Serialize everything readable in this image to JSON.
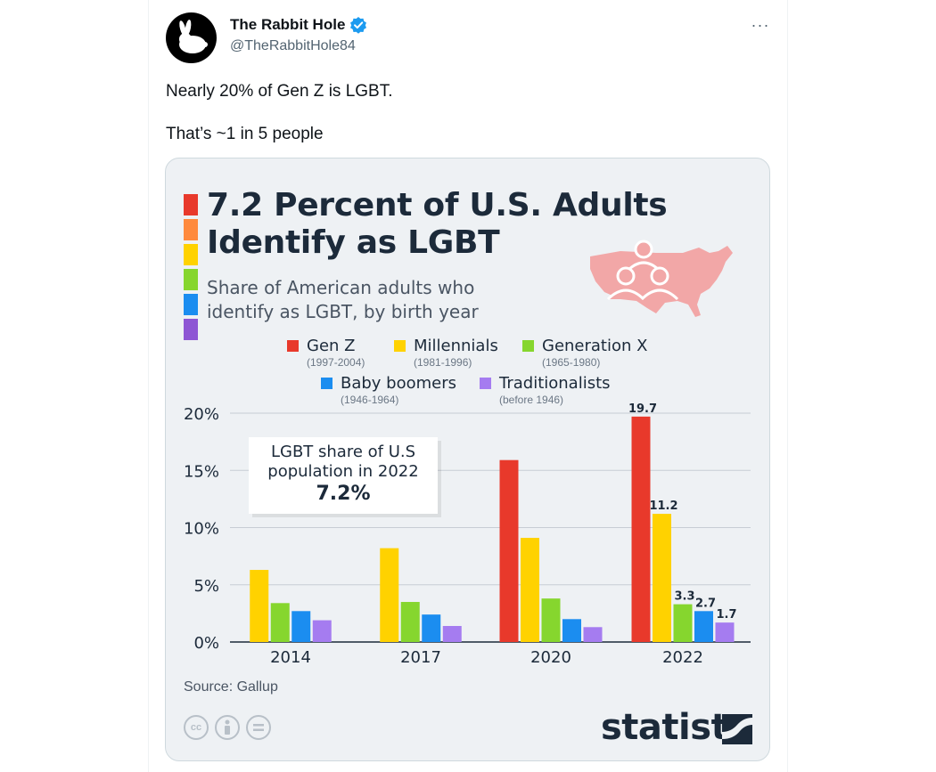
{
  "tweet": {
    "author_name": "The Rabbit Hole",
    "handle": "@TheRabbitHole84",
    "more_label": "···",
    "lines": [
      "Nearly 20% of Gen Z is LGBT.",
      "That’s ~1 in 5 people"
    ]
  },
  "infographic": {
    "title_line1": "7.2 Percent of U.S. Adults",
    "title_line2": "Identify as LGBT",
    "subtitle_line1": "Share of American adults who",
    "subtitle_line2": "identify as LGBT, by birth year",
    "callout_line1": "LGBT share of U.S",
    "callout_line2": "population in 2022",
    "callout_value": "7.2%",
    "source": "Source: Gallup",
    "brand": "statista",
    "cc_icons": [
      "cc-icon",
      "attribution-icon",
      "no-derivatives-icon"
    ]
  },
  "chart_data": {
    "type": "bar",
    "title": "7.2 Percent of U.S. Adults Identify as LGBT",
    "subtitle": "Share of American adults who identify as LGBT, by birth year",
    "categories": [
      "2014",
      "2017",
      "2020",
      "2022"
    ],
    "ylim": [
      0,
      20
    ],
    "yticks": [
      "0%",
      "5%",
      "10%",
      "15%",
      "20%"
    ],
    "grid": true,
    "series": [
      {
        "name": "Gen Z",
        "years": "(1997-2004)",
        "color": "#e8392b",
        "values": [
          null,
          null,
          15.9,
          19.7
        ],
        "labels": [
          null,
          null,
          null,
          "19.7"
        ]
      },
      {
        "name": "Millennials",
        "years": "(1981-1996)",
        "color": "#ffd200",
        "values": [
          6.3,
          8.2,
          9.1,
          11.2
        ],
        "labels": [
          null,
          null,
          null,
          "11.2"
        ]
      },
      {
        "name": "Generation X",
        "years": "(1965-1980)",
        "color": "#86d62e",
        "values": [
          3.4,
          3.5,
          3.8,
          3.3
        ],
        "labels": [
          null,
          null,
          null,
          "3.3"
        ]
      },
      {
        "name": "Baby boomers",
        "years": "(1946-1964)",
        "color": "#1b8df0",
        "values": [
          2.7,
          2.4,
          2.0,
          2.7
        ],
        "labels": [
          null,
          null,
          null,
          "2.7"
        ]
      },
      {
        "name": "Traditionalists",
        "years": "(before 1946)",
        "color": "#a57cf0",
        "values": [
          1.9,
          1.4,
          1.3,
          1.7
        ],
        "labels": [
          null,
          null,
          null,
          "1.7"
        ]
      }
    ],
    "legend_placement": "top"
  },
  "colors": {
    "rainbow": [
      "#e8392b",
      "#ff8a3d",
      "#ffd200",
      "#86d62e",
      "#1b8df0",
      "#8e56d4"
    ],
    "verified_blue": "#1d9bf0",
    "map_fill": "#f2a7a7"
  }
}
